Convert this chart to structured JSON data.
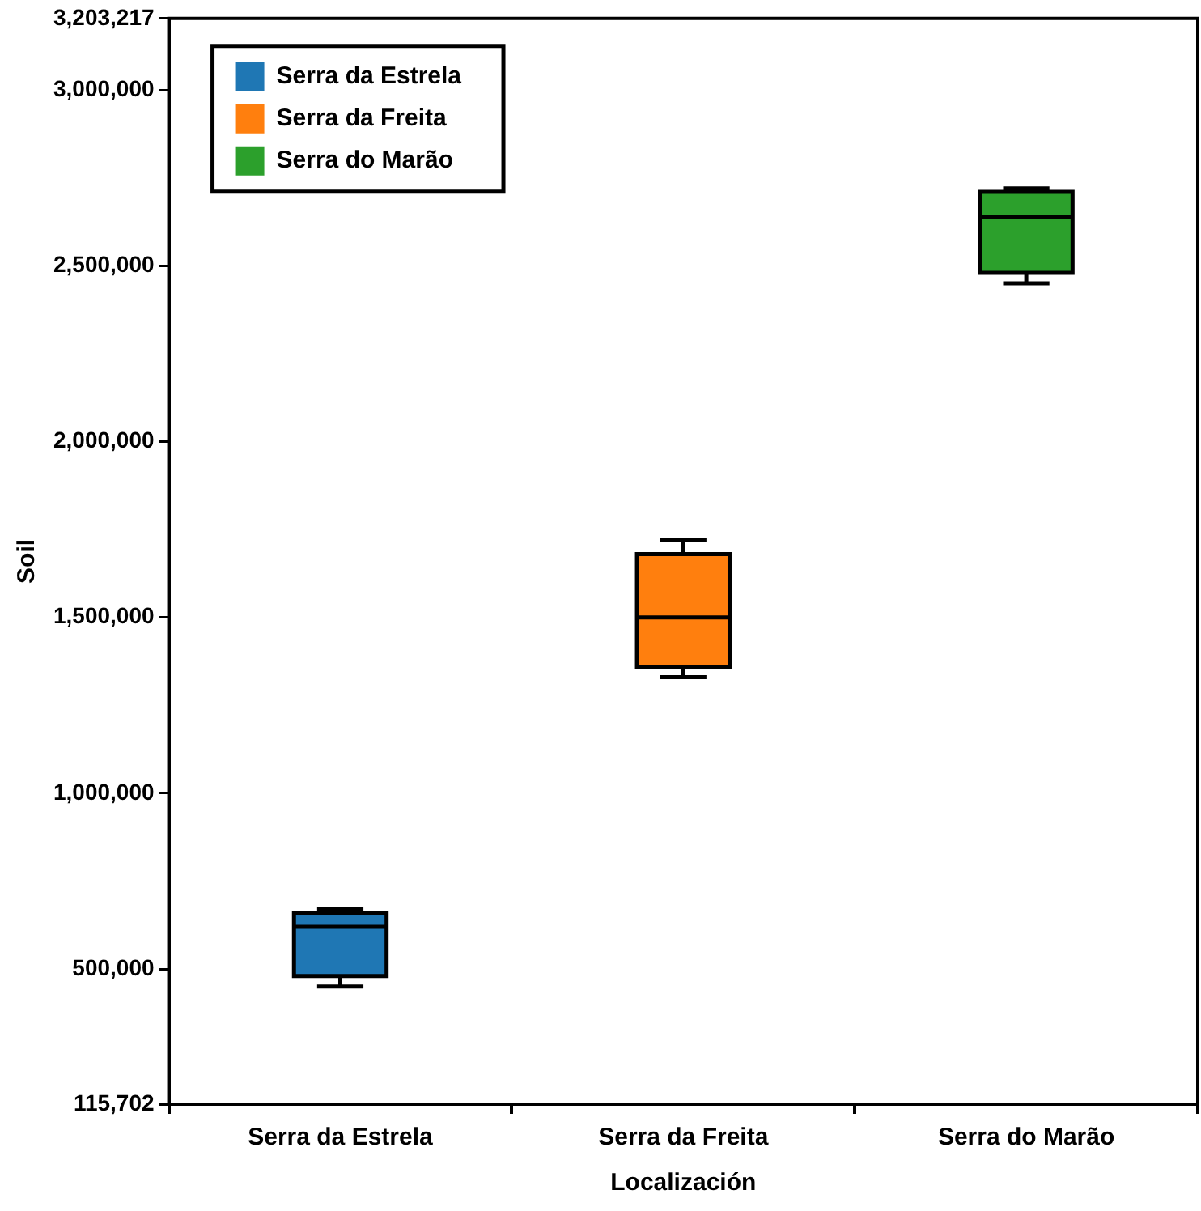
{
  "chart_data": {
    "type": "box",
    "xlabel": "Localización",
    "ylabel": "Soil",
    "categories": [
      "Serra da Estrela",
      "Serra da Freita",
      "Serra do Marão"
    ],
    "series": [
      {
        "name": "Serra da Estrela",
        "color": "#1f77b4",
        "boxes": [
          {
            "low": 450000,
            "q1": 480000,
            "median": 620000,
            "q3": 660000,
            "high": 670000
          },
          null,
          null
        ]
      },
      {
        "name": "Serra da Freita",
        "color": "#ff7f0e",
        "boxes": [
          null,
          {
            "low": 1330000,
            "q1": 1360000,
            "median": 1500000,
            "q3": 1680000,
            "high": 1720000
          },
          null
        ]
      },
      {
        "name": "Serra do Marão",
        "color": "#2ca02c",
        "boxes": [
          null,
          null,
          {
            "low": 2450000,
            "q1": 2480000,
            "median": 2640000,
            "q3": 2710000,
            "high": 2720000
          }
        ]
      }
    ],
    "ylim": [
      115702,
      3203217
    ],
    "yticks": [
      {
        "value": 115702,
        "label": "115,702"
      },
      {
        "value": 500000,
        "label": "500,000"
      },
      {
        "value": 1000000,
        "label": "1,000,000"
      },
      {
        "value": 1500000,
        "label": "1,500,000"
      },
      {
        "value": 2000000,
        "label": "2,000,000"
      },
      {
        "value": 2500000,
        "label": "2,500,000"
      },
      {
        "value": 3000000,
        "label": "3,000,000"
      },
      {
        "value": 3203217,
        "label": "3,203,217"
      }
    ],
    "grid": false,
    "legend": "top left"
  }
}
